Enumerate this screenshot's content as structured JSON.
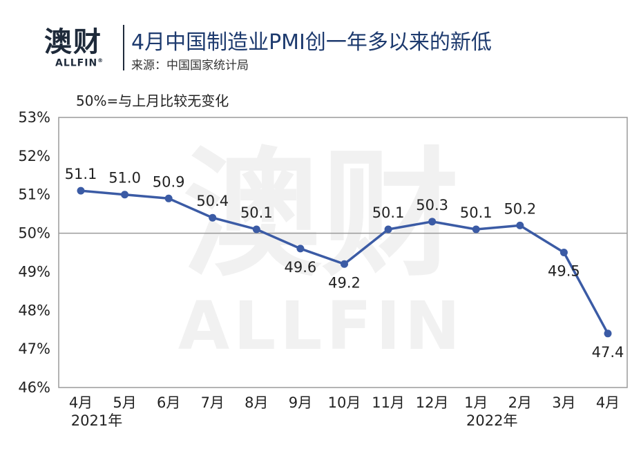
{
  "header": {
    "logo_cn": "澳财",
    "logo_en": "ALLFIN",
    "logo_reg": "®",
    "title": "4月中国制造业PMI创一年多以来的新低",
    "source": "来源：中国国家统计局"
  },
  "note": "50%=与上月比较无变化",
  "watermark": {
    "cn": "澳财",
    "en": "ALLFIN"
  },
  "colors": {
    "line": "#3b5ba5",
    "title": "#1d3a6e"
  },
  "chart_data": {
    "type": "line",
    "categories": [
      "4月",
      "5月",
      "6月",
      "7月",
      "8月",
      "9月",
      "10月",
      "11月",
      "12月",
      "1月",
      "2月",
      "3月",
      "4月"
    ],
    "year_labels": [
      {
        "index": 0,
        "text": "2021年"
      },
      {
        "index": 9,
        "text": "2022年"
      }
    ],
    "series": [
      {
        "values": [
          51.1,
          51.0,
          50.9,
          50.4,
          50.1,
          49.6,
          49.2,
          50.1,
          50.3,
          50.1,
          50.2,
          49.5,
          47.4
        ]
      }
    ],
    "label_positions": [
      "above",
      "above",
      "above",
      "above",
      "above",
      "below",
      "below",
      "above",
      "above",
      "above",
      "above",
      "below",
      "below"
    ],
    "ylim": [
      46,
      53
    ],
    "yticks": [
      46,
      47,
      48,
      49,
      50,
      51,
      52,
      53
    ],
    "ytick_suffix": "%",
    "reference_line": 50,
    "grid": false
  }
}
